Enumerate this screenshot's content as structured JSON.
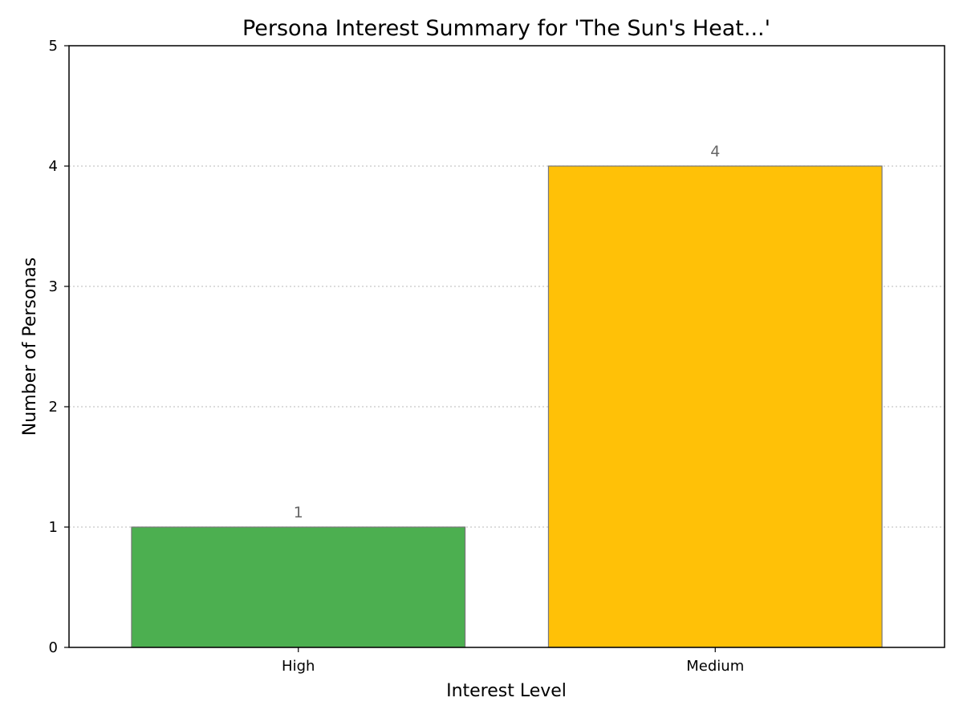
{
  "chart_data": {
    "type": "bar",
    "title": "Persona Interest Summary for 'The Sun's Heat...'",
    "xlabel": "Interest Level",
    "ylabel": "Number of Personas",
    "categories": [
      "High",
      "Medium"
    ],
    "values": [
      1,
      4
    ],
    "data_labels": [
      "1",
      "4"
    ],
    "bar_colors": [
      "#4caf50",
      "#ffc107"
    ],
    "bar_edge_color": "#777777",
    "ylim": [
      0,
      5
    ],
    "yticks": [
      0,
      1,
      2,
      3,
      4,
      5
    ],
    "ytick_labels": [
      "0",
      "1",
      "2",
      "3",
      "4",
      "5"
    ],
    "grid": {
      "axis": "y",
      "style": "dotted",
      "color": "#c8c8c8"
    },
    "legend": "none"
  }
}
